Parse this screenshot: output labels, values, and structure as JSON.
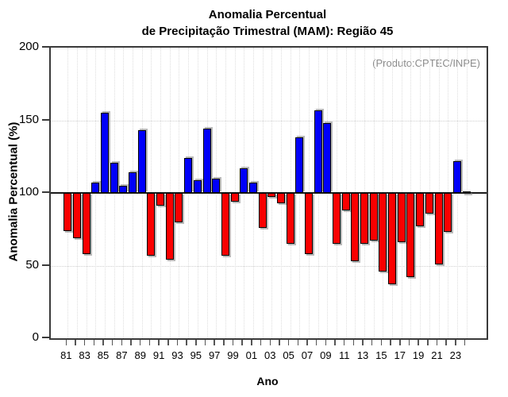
{
  "title": {
    "line1": "Anomalia Percentual",
    "line2": "de Precipitação Trimestral (MAM): Região 45"
  },
  "annotation": "(Produto:CPTEC/INPE)",
  "chart_data": {
    "type": "bar",
    "title": "Anomalia Percentual de Precipitação Trimestral (MAM): Região 45",
    "xlabel": "Ano",
    "ylabel": "Anomalia Percentual (%)",
    "ylim": [
      0,
      200
    ],
    "yticks": [
      0,
      50,
      100,
      150,
      200
    ],
    "baseline": 100,
    "grid": "dotted vertical line at every year; dotted horizontal lines at 50 and 150; solid black line at 100",
    "legend": "none",
    "categories": [
      "81",
      "82",
      "83",
      "84",
      "85",
      "86",
      "87",
      "88",
      "89",
      "90",
      "91",
      "92",
      "93",
      "94",
      "95",
      "96",
      "97",
      "98",
      "99",
      "00",
      "01",
      "02",
      "03",
      "04",
      "05",
      "06",
      "07",
      "08",
      "09",
      "10",
      "11",
      "12",
      "13",
      "14",
      "15",
      "16",
      "17",
      "18",
      "19",
      "20",
      "21",
      "22",
      "23",
      "24"
    ],
    "values": [
      74,
      69,
      58,
      107,
      155,
      121,
      105,
      114,
      143,
      57,
      91,
      54,
      80,
      124,
      109,
      144,
      110,
      57,
      94,
      117,
      107,
      76,
      97,
      93,
      65,
      138,
      58,
      157,
      148,
      65,
      88,
      53,
      65,
      67,
      46,
      37,
      66,
      42,
      77,
      86,
      51,
      73,
      122,
      100
    ],
    "x_tick_labels": [
      "81",
      "83",
      "85",
      "87",
      "89",
      "91",
      "93",
      "95",
      "97",
      "99",
      "01",
      "03",
      "05",
      "07",
      "09",
      "11",
      "13",
      "15",
      "17",
      "19",
      "21",
      "23"
    ],
    "colors": {
      "above_baseline": "#0000fa",
      "below_baseline": "#fa0000",
      "bar_border": "#000000",
      "bar_shadow": "#828282",
      "annotation_text": "#8c8c8c",
      "axis_box": "#3a3a3a"
    }
  }
}
